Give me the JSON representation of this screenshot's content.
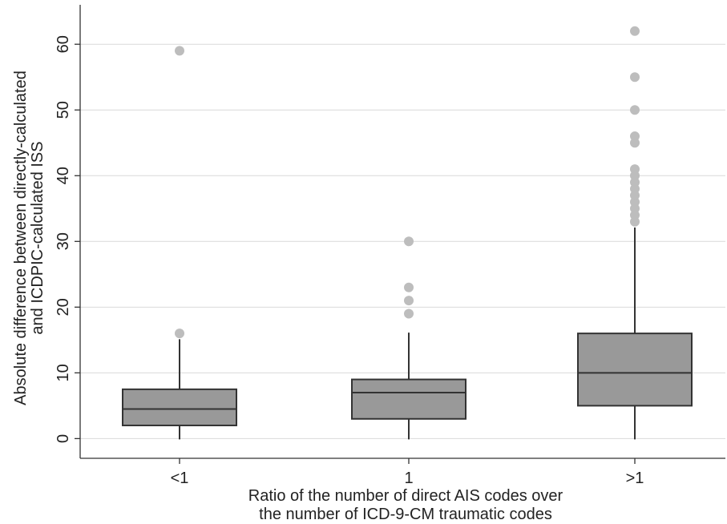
{
  "chart_data": {
    "type": "boxplot",
    "title": "",
    "xlabel": [
      "Ratio of the number of direct AIS codes over",
      "the number of ICD-9-CM traumatic codes"
    ],
    "ylabel": [
      "Absolute difference between directly-calculated",
      "and ICDPIC-calculated ISS"
    ],
    "categories": [
      "<1",
      "1",
      ">1"
    ],
    "ylim": [
      -3,
      66
    ],
    "yticks": [
      0,
      10,
      20,
      30,
      40,
      50,
      60
    ],
    "grid": true,
    "boxes": [
      {
        "category": "<1",
        "whisker_low": 0,
        "q1": 2,
        "median": 4.5,
        "q3": 7.5,
        "whisker_high": 15,
        "outliers": [
          16,
          59
        ]
      },
      {
        "category": "1",
        "whisker_low": 0,
        "q1": 3,
        "median": 7,
        "q3": 9,
        "whisker_high": 16,
        "outliers": [
          19,
          21,
          23,
          30
        ]
      },
      {
        "category": ">1",
        "whisker_low": 0,
        "q1": 5,
        "median": 10,
        "q3": 16,
        "whisker_high": 32,
        "outliers": [
          33,
          34,
          35,
          36,
          37,
          38,
          39,
          40,
          41,
          45,
          46,
          50,
          55,
          62
        ]
      }
    ],
    "colors": {
      "box_fill": "#999999",
      "box_stroke": "#333333",
      "outlier": "#bdbdbd",
      "grid": "#d9d9d9",
      "axis": "#333333"
    }
  }
}
